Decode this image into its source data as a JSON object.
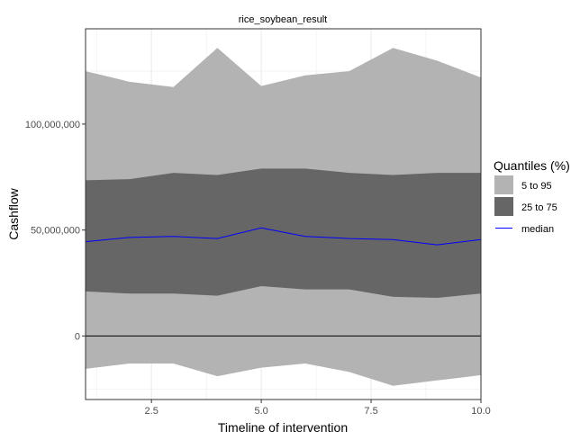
{
  "chart_data": {
    "type": "area",
    "title": "rice_soybean_result",
    "xlabel": "Timeline of intervention",
    "ylabel": "Cashflow",
    "xlim": [
      1,
      10
    ],
    "ylim": [
      -30000000,
      145000000
    ],
    "x": [
      1,
      2,
      3,
      4,
      5,
      6,
      7,
      8,
      9,
      10
    ],
    "x_ticks": [
      2.5,
      5.0,
      7.5,
      10.0
    ],
    "x_tick_labels": [
      "2.5",
      "5.0",
      "7.5",
      "10.0"
    ],
    "y_ticks": [
      0,
      50000000,
      100000000
    ],
    "y_tick_labels": [
      "0",
      "50,000,000",
      "100,000,000"
    ],
    "zero_line": 0,
    "grid": true,
    "legend": {
      "title": "Quantiles (%)",
      "position": "right",
      "items": [
        {
          "label": "5 to 95",
          "color": "#b3b3b3",
          "kind": "fill"
        },
        {
          "label": "25 to 75",
          "color": "#666666",
          "kind": "fill"
        },
        {
          "label": "median",
          "color": "#0000ff",
          "kind": "line"
        }
      ]
    },
    "series": [
      {
        "name": "5 to 95",
        "color": "#b3b3b3",
        "lower": [
          -15500000,
          -13000000,
          -13000000,
          -19000000,
          -15000000,
          -13000000,
          -17000000,
          -23500000,
          -21000000,
          -18500000
        ],
        "upper": [
          125000000,
          120000000,
          117500000,
          136000000,
          118000000,
          123000000,
          125000000,
          136000000,
          130000000,
          122000000
        ]
      },
      {
        "name": "25 to 75",
        "color": "#666666",
        "lower": [
          21000000,
          20000000,
          20000000,
          19000000,
          23500000,
          22000000,
          22000000,
          18500000,
          18000000,
          20000000
        ],
        "upper": [
          73500000,
          74000000,
          77000000,
          76000000,
          79000000,
          79000000,
          77000000,
          76000000,
          77000000,
          77000000
        ]
      },
      {
        "name": "median",
        "color": "#0000ff",
        "values": [
          44500000,
          46500000,
          47000000,
          46000000,
          51000000,
          47000000,
          46000000,
          45500000,
          43000000,
          45500000
        ]
      }
    ]
  }
}
